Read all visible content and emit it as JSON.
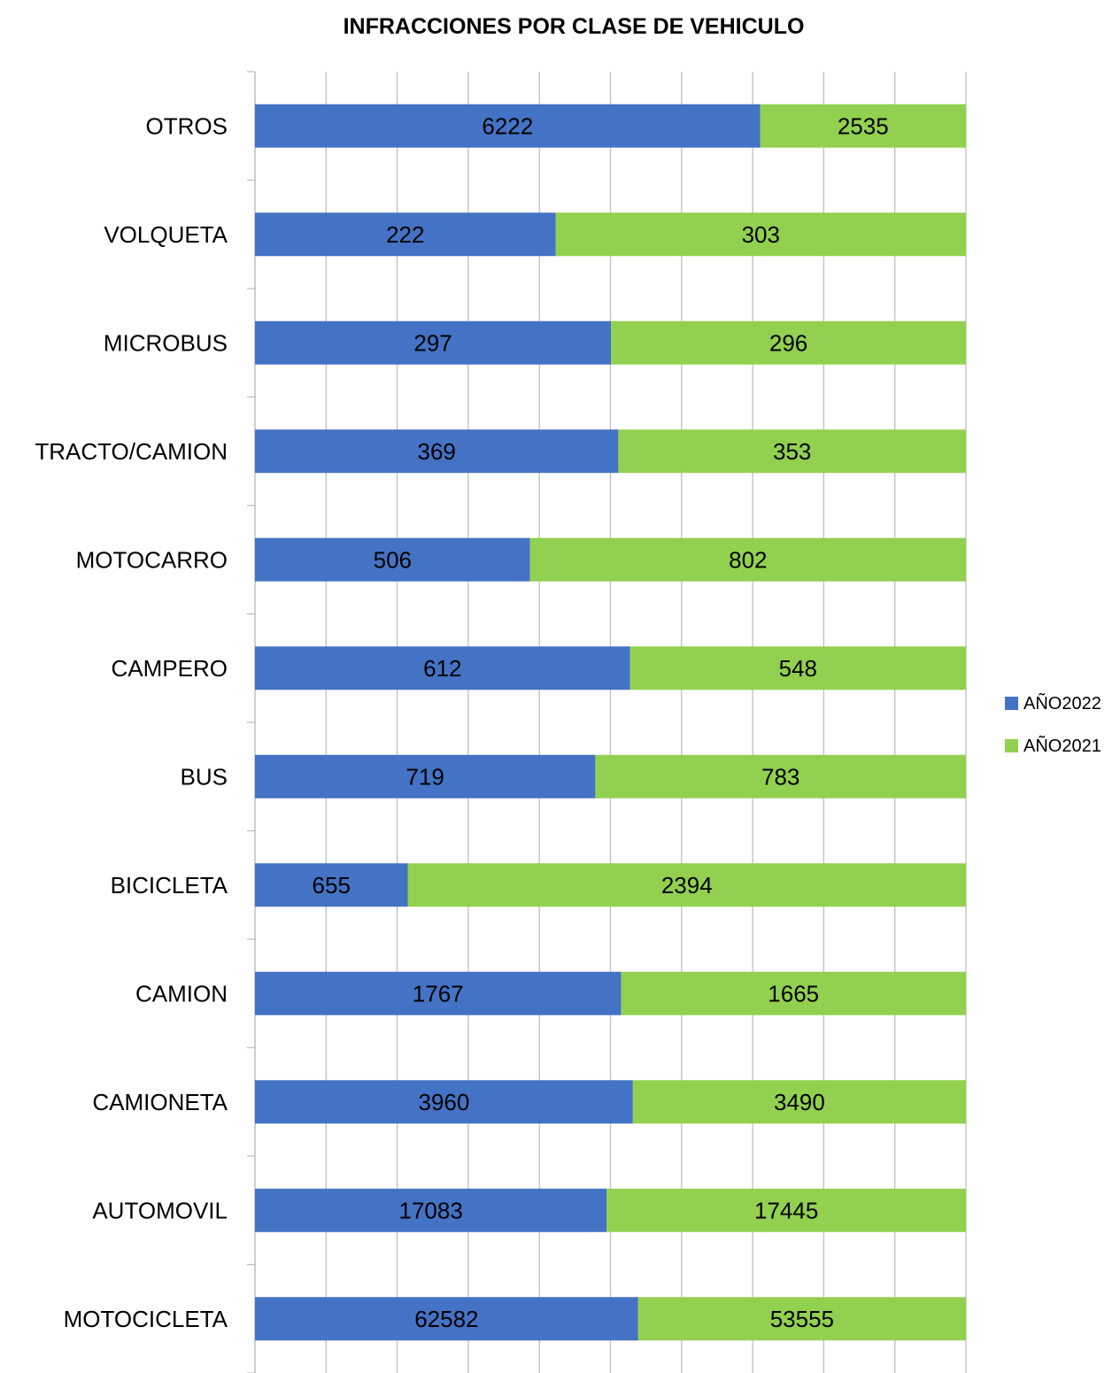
{
  "chart_data": {
    "type": "bar",
    "orientation": "horizontal",
    "stacked": "100%",
    "title": "INFRACCIONES POR CLASE DE VEHICULO",
    "xlabel": "",
    "ylabel": "",
    "categories": [
      "OTROS",
      "VOLQUETA",
      "MICROBUS",
      "TRACTO/CAMION",
      "MOTOCARRO",
      "CAMPERO",
      "BUS",
      "BICICLETA",
      "CAMION",
      "CAMIONETA",
      "AUTOMOVIL",
      "MOTOCICLETA"
    ],
    "series": [
      {
        "name": "AÑO2022",
        "color": "#4472C4",
        "values": [
          6222,
          222,
          297,
          369,
          506,
          612,
          719,
          655,
          1767,
          3960,
          17083,
          62582
        ]
      },
      {
        "name": "AÑO2021",
        "color": "#92D050",
        "values": [
          2535,
          303,
          296,
          353,
          802,
          548,
          783,
          2394,
          1665,
          3490,
          17445,
          53555
        ]
      }
    ],
    "xlim": [
      0,
      1
    ],
    "grid": true,
    "legend_position": "right"
  }
}
